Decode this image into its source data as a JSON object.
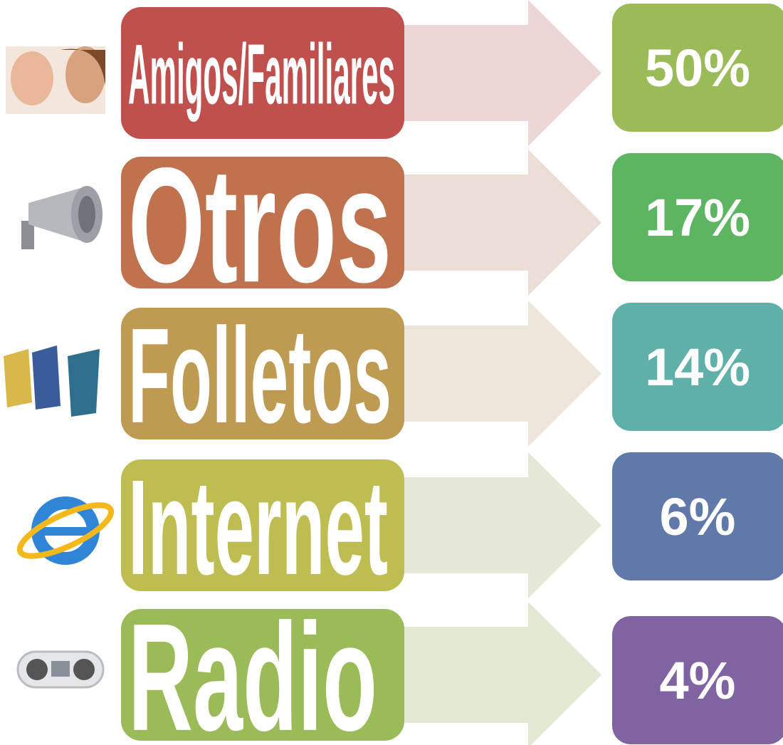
{
  "items": [
    {
      "label": "Amigos/Familiares",
      "value": "50%"
    },
    {
      "label": "Otros",
      "value": "17%"
    },
    {
      "label": "Folletos",
      "value": "14%"
    },
    {
      "label": "Internet",
      "value": "6%"
    },
    {
      "label": "Radio",
      "value": "4%"
    }
  ]
}
